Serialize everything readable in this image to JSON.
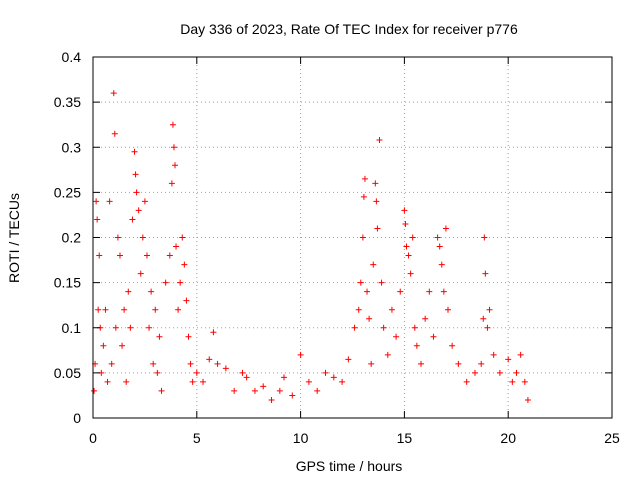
{
  "chart_data": {
    "type": "scatter",
    "title": "Day 336 of 2023, Rate Of TEC Index for receiver p776",
    "xlabel": "GPS time / hours",
    "ylabel": "ROTI / TECUs",
    "xlim": [
      0,
      25
    ],
    "ylim": [
      0,
      0.4
    ],
    "xticks": [
      0,
      5,
      10,
      15,
      20,
      25
    ],
    "yticks": [
      0,
      0.05,
      0.1,
      0.15,
      0.2,
      0.25,
      0.3,
      0.35,
      0.4
    ],
    "xtick_labels": [
      "0",
      "5",
      "10",
      "15",
      "20",
      "25"
    ],
    "ytick_labels": [
      "0",
      "0.05",
      "0.1",
      "0.15",
      "0.2",
      "0.25",
      "0.3",
      "0.35",
      "0.4"
    ],
    "grid": true,
    "legend": "none",
    "marker": "+",
    "color": "#ff0000",
    "series": [
      {
        "points": [
          [
            0.05,
            0.03
          ],
          [
            0.1,
            0.06
          ],
          [
            0.15,
            0.24
          ],
          [
            0.2,
            0.22
          ],
          [
            0.25,
            0.12
          ],
          [
            0.3,
            0.18
          ],
          [
            0.35,
            0.1
          ],
          [
            0.4,
            0.05
          ],
          [
            0.5,
            0.08
          ],
          [
            0.6,
            0.12
          ],
          [
            0.7,
            0.04
          ],
          [
            0.8,
            0.24
          ],
          [
            0.9,
            0.06
          ],
          [
            1.0,
            0.36
          ],
          [
            1.05,
            0.315
          ],
          [
            1.1,
            0.1
          ],
          [
            1.2,
            0.2
          ],
          [
            1.3,
            0.18
          ],
          [
            1.4,
            0.08
          ],
          [
            1.5,
            0.12
          ],
          [
            1.6,
            0.04
          ],
          [
            1.7,
            0.14
          ],
          [
            1.8,
            0.1
          ],
          [
            1.9,
            0.22
          ],
          [
            2.0,
            0.295
          ],
          [
            2.05,
            0.27
          ],
          [
            2.1,
            0.25
          ],
          [
            2.2,
            0.23
          ],
          [
            2.3,
            0.16
          ],
          [
            2.4,
            0.2
          ],
          [
            2.5,
            0.24
          ],
          [
            2.6,
            0.18
          ],
          [
            2.7,
            0.1
          ],
          [
            2.8,
            0.14
          ],
          [
            2.9,
            0.06
          ],
          [
            3.0,
            0.12
          ],
          [
            3.1,
            0.05
          ],
          [
            3.2,
            0.09
          ],
          [
            3.3,
            0.03
          ],
          [
            3.5,
            0.15
          ],
          [
            3.7,
            0.18
          ],
          [
            3.8,
            0.26
          ],
          [
            3.85,
            0.325
          ],
          [
            3.9,
            0.3
          ],
          [
            3.95,
            0.28
          ],
          [
            4.0,
            0.19
          ],
          [
            4.1,
            0.12
          ],
          [
            4.2,
            0.15
          ],
          [
            4.3,
            0.2
          ],
          [
            4.4,
            0.17
          ],
          [
            4.5,
            0.13
          ],
          [
            4.6,
            0.09
          ],
          [
            4.7,
            0.06
          ],
          [
            4.8,
            0.04
          ],
          [
            5.0,
            0.05
          ],
          [
            5.3,
            0.04
          ],
          [
            5.6,
            0.065
          ],
          [
            5.8,
            0.095
          ],
          [
            6.0,
            0.06
          ],
          [
            6.4,
            0.055
          ],
          [
            6.8,
            0.03
          ],
          [
            7.2,
            0.05
          ],
          [
            7.4,
            0.045
          ],
          [
            7.8,
            0.03
          ],
          [
            8.2,
            0.035
          ],
          [
            8.6,
            0.02
          ],
          [
            9.0,
            0.03
          ],
          [
            9.2,
            0.045
          ],
          [
            9.6,
            0.025
          ],
          [
            10.0,
            0.07
          ],
          [
            10.4,
            0.04
          ],
          [
            10.8,
            0.03
          ],
          [
            11.2,
            0.05
          ],
          [
            11.6,
            0.045
          ],
          [
            12.0,
            0.04
          ],
          [
            12.3,
            0.065
          ],
          [
            12.6,
            0.1
          ],
          [
            12.8,
            0.12
          ],
          [
            12.9,
            0.15
          ],
          [
            13.0,
            0.2
          ],
          [
            13.05,
            0.245
          ],
          [
            13.1,
            0.265
          ],
          [
            13.2,
            0.14
          ],
          [
            13.3,
            0.11
          ],
          [
            13.4,
            0.06
          ],
          [
            13.5,
            0.17
          ],
          [
            13.6,
            0.26
          ],
          [
            13.65,
            0.24
          ],
          [
            13.7,
            0.21
          ],
          [
            13.8,
            0.308
          ],
          [
            13.9,
            0.15
          ],
          [
            14.0,
            0.1
          ],
          [
            14.2,
            0.07
          ],
          [
            14.4,
            0.12
          ],
          [
            14.6,
            0.09
          ],
          [
            14.8,
            0.14
          ],
          [
            15.0,
            0.23
          ],
          [
            15.05,
            0.215
          ],
          [
            15.1,
            0.19
          ],
          [
            15.2,
            0.18
          ],
          [
            15.3,
            0.16
          ],
          [
            15.4,
            0.2
          ],
          [
            15.5,
            0.1
          ],
          [
            15.6,
            0.08
          ],
          [
            15.8,
            0.06
          ],
          [
            16.0,
            0.11
          ],
          [
            16.2,
            0.14
          ],
          [
            16.4,
            0.09
          ],
          [
            16.6,
            0.2
          ],
          [
            16.7,
            0.19
          ],
          [
            16.8,
            0.17
          ],
          [
            16.9,
            0.14
          ],
          [
            17.0,
            0.21
          ],
          [
            17.1,
            0.12
          ],
          [
            17.3,
            0.08
          ],
          [
            17.6,
            0.06
          ],
          [
            18.0,
            0.04
          ],
          [
            18.4,
            0.05
          ],
          [
            18.7,
            0.06
          ],
          [
            18.8,
            0.11
          ],
          [
            18.85,
            0.2
          ],
          [
            18.9,
            0.16
          ],
          [
            19.0,
            0.1
          ],
          [
            19.1,
            0.12
          ],
          [
            19.3,
            0.07
          ],
          [
            19.6,
            0.05
          ],
          [
            20.0,
            0.065
          ],
          [
            20.2,
            0.04
          ],
          [
            20.4,
            0.05
          ],
          [
            20.6,
            0.07
          ],
          [
            20.8,
            0.04
          ],
          [
            20.95,
            0.02
          ]
        ]
      }
    ]
  }
}
